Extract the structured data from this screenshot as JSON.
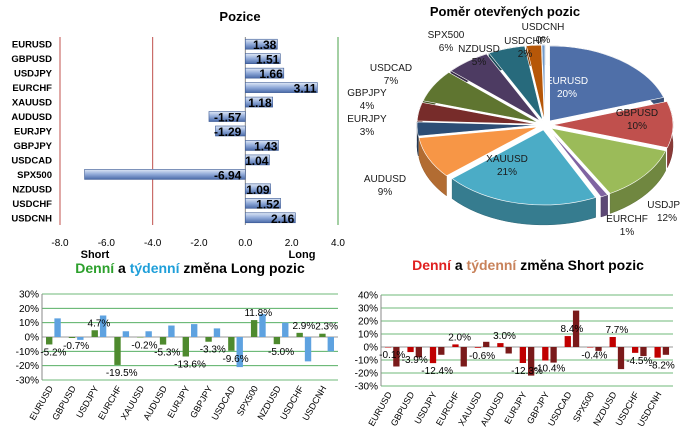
{
  "chart_data": [
    {
      "id": "pozice",
      "type": "bar",
      "orientation": "horizontal",
      "title": "Pozice",
      "categories": [
        "EURUSD",
        "GBPUSD",
        "USDJPY",
        "EURCHF",
        "XAUUSD",
        "AUDUSD",
        "EURJPY",
        "GBPJPY",
        "USDCAD",
        "SPX500",
        "NZDUSD",
        "USDCHF",
        "USDCNH"
      ],
      "values": [
        1.38,
        1.51,
        1.66,
        3.11,
        1.18,
        -1.57,
        -1.29,
        1.43,
        1.04,
        -6.94,
        1.09,
        1.52,
        2.16
      ],
      "value_labels": [
        "1.38",
        "1.51",
        "1.66",
        "3.11",
        "1.18",
        "-1.57",
        "-1.29",
        "1.43",
        "1.04",
        "-6.94",
        "1.09",
        "1.52",
        "2.16"
      ],
      "xlim": [
        -8,
        4
      ],
      "xticks": [
        "-8.0",
        "-6.0",
        "-4.0",
        "-2.0",
        "0.0",
        "2.0",
        "4.0"
      ],
      "short_label": "Short",
      "long_label": "Long",
      "colors": {
        "bar": "#6f8fc6",
        "short_line": "#c0504d",
        "long_line": "#4aa04a"
      }
    },
    {
      "id": "pomer",
      "type": "pie",
      "title": "Poměr  otevřených pozic",
      "slices": [
        {
          "label": "EURUSD",
          "pct_label": "20%",
          "value": 20,
          "color": "#4f6fa8"
        },
        {
          "label": "GBPUSD",
          "pct_label": "10%",
          "value": 10,
          "color": "#c0504d"
        },
        {
          "label": "USDJPY",
          "pct_label": "12%",
          "value": 12,
          "color": "#9bbb59"
        },
        {
          "label": "EURCHF",
          "pct_label": "1%",
          "value": 1,
          "color": "#8064a2"
        },
        {
          "label": "XAUUSD",
          "pct_label": "21%",
          "value": 21,
          "color": "#4bacc6"
        },
        {
          "label": "AUDUSD",
          "pct_label": "9%",
          "value": 9,
          "color": "#f79646"
        },
        {
          "label": "EURJPY",
          "pct_label": "3%",
          "value": 3,
          "color": "#2c4d75"
        },
        {
          "label": "GBPJPY",
          "pct_label": "4%",
          "value": 4,
          "color": "#772c2a"
        },
        {
          "label": "USDCAD",
          "pct_label": "7%",
          "value": 7,
          "color": "#5f7530"
        },
        {
          "label": "SPX500",
          "pct_label": "6%",
          "value": 6,
          "color": "#4d3b62"
        },
        {
          "label": "NZDUSD",
          "pct_label": "5%",
          "value": 5,
          "color": "#276a7c"
        },
        {
          "label": "USDCHF",
          "pct_label": "2%",
          "value": 2,
          "color": "#b65708"
        },
        {
          "label": "USDCNH",
          "pct_label": "0%",
          "value": 0.4,
          "color": "#729aca"
        }
      ]
    },
    {
      "id": "long-zmena",
      "type": "bar",
      "title_parts": {
        "a": "Denní",
        "b": " a ",
        "c": "týdenní",
        "d": " změna Long pozic"
      },
      "title_colors": {
        "a": "#2ca02c",
        "c": "#1f9fd9"
      },
      "categories": [
        "EURUSD",
        "GBPUSD",
        "USDJPY",
        "EURCHF",
        "XAUUSD",
        "AUDUSD",
        "EURJPY",
        "GBPJPY",
        "USDCAD",
        "SPX500",
        "NZDUSD",
        "USDCHF",
        "USDCNH"
      ],
      "series": [
        {
          "name": "Denní",
          "values": [
            -5.2,
            -0.7,
            4.7,
            -19.5,
            -0.2,
            -5.3,
            -13.6,
            -3.3,
            -9.6,
            11.8,
            -5.0,
            2.9,
            2.3
          ],
          "color": "#4e8a2e"
        },
        {
          "name": "Týdenní",
          "values": [
            13,
            -2,
            15,
            4,
            4,
            8,
            9,
            6,
            -21,
            16,
            10,
            -17,
            -10
          ],
          "color": "#5ea2e0"
        }
      ],
      "data_labels": [
        "-5.2%",
        "-0.7%",
        "4.7%",
        "-19.5%",
        "-0.2%",
        "-5.3%",
        "-13.6%",
        "-3.3%",
        "-9.6%",
        "11.8%",
        "-5.0%",
        "2.9%",
        "2.3%"
      ],
      "ylim": [
        -30,
        30
      ],
      "yticks": [
        "30%",
        "20%",
        "10%",
        "0%",
        "-10%",
        "-20%",
        "-30%"
      ]
    },
    {
      "id": "short-zmena",
      "type": "bar",
      "title_parts": {
        "a": "Denní",
        "b": " a ",
        "c": "týdenní",
        "d": " změna Short pozic"
      },
      "title_colors": {
        "a": "#e02020",
        "c": "#c8825a"
      },
      "categories": [
        "EURUSD",
        "GBPUSD",
        "USDJPY",
        "EURCHF",
        "XAUUSD",
        "AUDUSD",
        "EURJPY",
        "GBPJPY",
        "USDCAD",
        "SPX500",
        "NZDUSD",
        "USDCHF",
        "USDCNH"
      ],
      "series": [
        {
          "name": "Denní",
          "values": [
            -0.1,
            -3.9,
            -12.4,
            2.0,
            -0.6,
            3.0,
            -12.3,
            -10.4,
            8.4,
            -0.4,
            7.7,
            -4.5,
            -8.2
          ],
          "color": "#c00000"
        },
        {
          "name": "Týdenní",
          "values": [
            -15,
            -8,
            -6,
            -15,
            4,
            -5,
            -22,
            -12,
            28,
            -3,
            -17,
            -7,
            -6
          ],
          "color": "#7a1a1a"
        }
      ],
      "data_labels": [
        "-0.1%",
        "-3.9%",
        "-12.4%",
        "2.0%",
        "-0.6%",
        "3.0%",
        "-12.3%",
        "-10.4%",
        "8.4%",
        "-0.4%",
        "7.7%",
        "-4.5%",
        "-8.2%"
      ],
      "ylim": [
        -30,
        40
      ],
      "yticks": [
        "40%",
        "30%",
        "20%",
        "10%",
        "0%",
        "-10%",
        "-20%",
        "-30%"
      ]
    }
  ]
}
